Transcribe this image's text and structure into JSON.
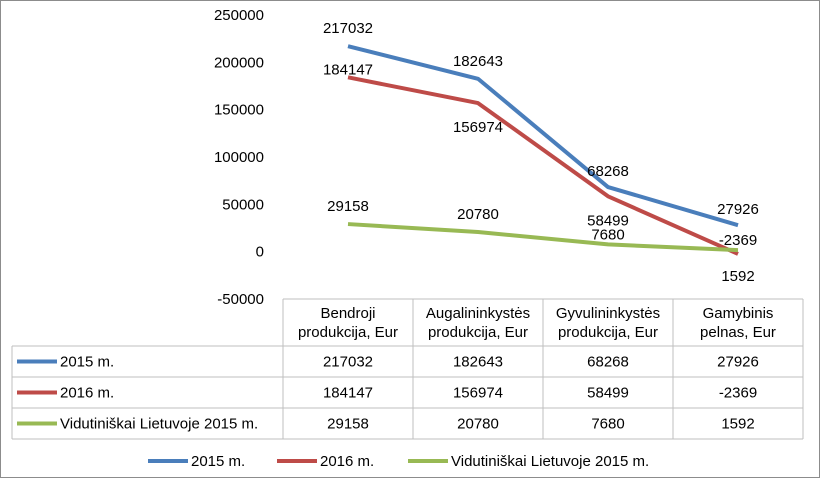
{
  "chart_data": {
    "type": "line",
    "categories": [
      [
        "Bendroji",
        "produkcija, Eur"
      ],
      [
        "Augalininkystės",
        "produkcija, Eur"
      ],
      [
        "Gyvulininkystės",
        "produkcija, Eur"
      ],
      [
        "Gamybinis",
        "pelnas, Eur"
      ]
    ],
    "series": [
      {
        "name": "2015 m.",
        "values": [
          217032,
          182643,
          68268,
          27926
        ],
        "labels": [
          "217032",
          "182643",
          "68268",
          "27926"
        ],
        "color": "#4a7ebb"
      },
      {
        "name": "2016 m.",
        "values": [
          184147,
          156974,
          58499,
          -2369
        ],
        "labels": [
          "184147",
          "156974",
          "58499",
          "-2369"
        ],
        "color": "#be4b48"
      },
      {
        "name": "Vidutiniškai Lietuvoje 2015 m.",
        "values": [
          29158,
          20780,
          7680,
          1592
        ],
        "labels": [
          "29158",
          "20780",
          "7680",
          "1592"
        ],
        "color": "#98b954"
      }
    ],
    "ylim": [
      -50000,
      250000
    ],
    "yticks": [
      "250000",
      "200000",
      "150000",
      "100000",
      "50000",
      "0",
      "-50000"
    ],
    "ytick_values": [
      250000,
      200000,
      150000,
      100000,
      50000,
      0,
      -50000
    ],
    "data_table": true,
    "legend_position": "bottom",
    "grid": false
  }
}
